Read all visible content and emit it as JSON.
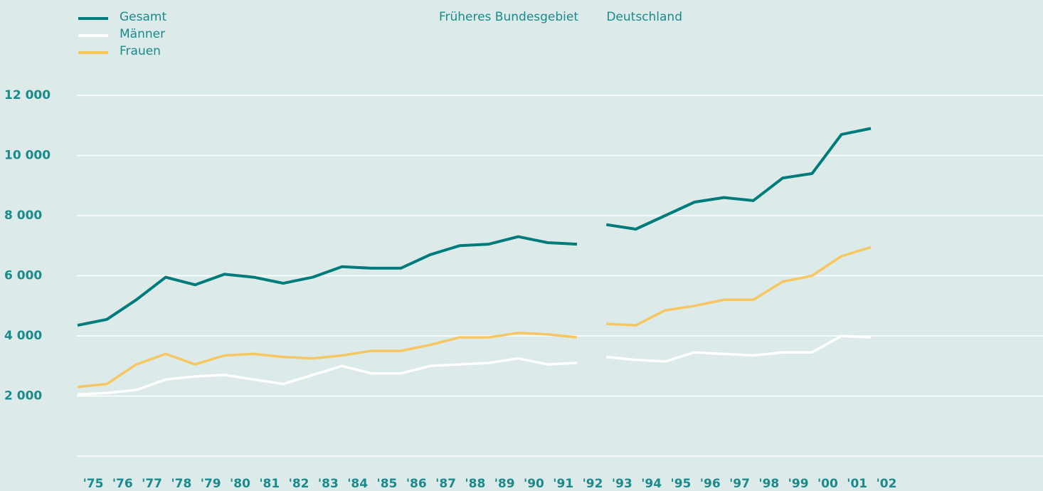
{
  "chart_data": {
    "type": "line",
    "categories": [
      "'75",
      "'76",
      "'77",
      "'78",
      "'79",
      "'80",
      "'81",
      "'82",
      "'83",
      "'84",
      "'85",
      "'86",
      "'87",
      "'88",
      "'89",
      "'90",
      "'91",
      "'92",
      "'93",
      "'94",
      "'95",
      "'96",
      "'97",
      "'98",
      "'99",
      "'00",
      "'01",
      "'02"
    ],
    "series": [
      {
        "name": "Gesamt",
        "color": "#007b7b",
        "values": [
          4350,
          4550,
          5200,
          5950,
          5700,
          6050,
          5950,
          5750,
          5950,
          6300,
          6250,
          6250,
          6700,
          7000,
          7050,
          7300,
          7100,
          7050,
          7700,
          7550,
          8000,
          8450,
          8600,
          8500,
          9250,
          9400,
          10700,
          10900
        ]
      },
      {
        "name": "Männer",
        "color": "#ffffff",
        "values": [
          2050,
          2100,
          2200,
          2550,
          2650,
          2700,
          2550,
          2400,
          2700,
          3000,
          2750,
          2750,
          3000,
          3050,
          3100,
          3250,
          3050,
          3100,
          3300,
          3200,
          3150,
          3450,
          3400,
          3350,
          3450,
          3450,
          4000,
          3950
        ]
      },
      {
        "name": "Frauen",
        "color": "#f6c660",
        "values": [
          2300,
          2400,
          3050,
          3400,
          3050,
          3350,
          3400,
          3300,
          3250,
          3350,
          3500,
          3500,
          3700,
          3950,
          3950,
          4100,
          4050,
          3950,
          4400,
          4350,
          4850,
          5000,
          5200,
          5200,
          5800,
          6000,
          6650,
          6950
        ]
      }
    ],
    "sections": [
      {
        "label": "Früheres Bundesgebiet",
        "from": 0,
        "to": 17
      },
      {
        "label": "Deutschland",
        "from": 18,
        "to": 27
      }
    ],
    "ylim": [
      0,
      12000
    ],
    "yticks": [
      {
        "value": 2000,
        "label": "2 000"
      },
      {
        "value": 4000,
        "label": "4 000"
      },
      {
        "value": 6000,
        "label": "6 000"
      },
      {
        "value": 8000,
        "label": "8 000"
      },
      {
        "value": 10000,
        "label": "10 000"
      },
      {
        "value": 12000,
        "label": "12 000"
      }
    ],
    "grid": true,
    "legend": "top-left"
  }
}
